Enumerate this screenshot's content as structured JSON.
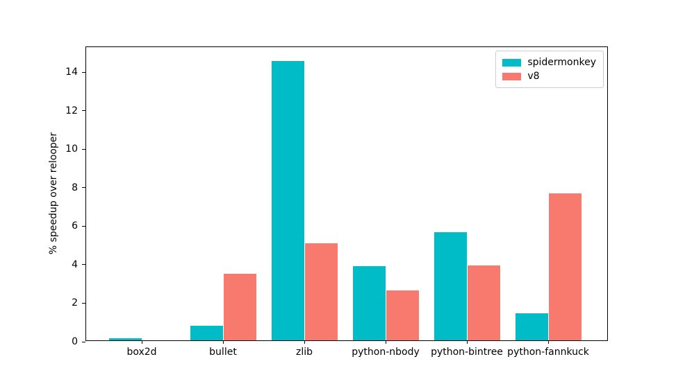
{
  "chart_data": {
    "type": "bar",
    "title": "",
    "xlabel": "",
    "ylabel": "% speedup over relooper",
    "categories": [
      "box2d",
      "bullet",
      "zlib",
      "python-nbody",
      "python-bintree",
      "python-fannkuck"
    ],
    "series": [
      {
        "name": "spidermonkey",
        "color": "#00bcc6",
        "values": [
          0.1,
          0.75,
          14.5,
          3.85,
          5.6,
          1.4
        ]
      },
      {
        "name": "v8",
        "color": "#f87a6e",
        "values": [
          0.0,
          3.45,
          5.05,
          2.6,
          3.9,
          7.65
        ]
      }
    ],
    "ylim": [
      0,
      15.3
    ],
    "yticks": [
      0,
      2,
      4,
      6,
      8,
      10,
      12,
      14
    ],
    "legend_position": "upper right",
    "grid": false,
    "axis_color": "#000000",
    "legend_border_color": "#cccccc"
  }
}
